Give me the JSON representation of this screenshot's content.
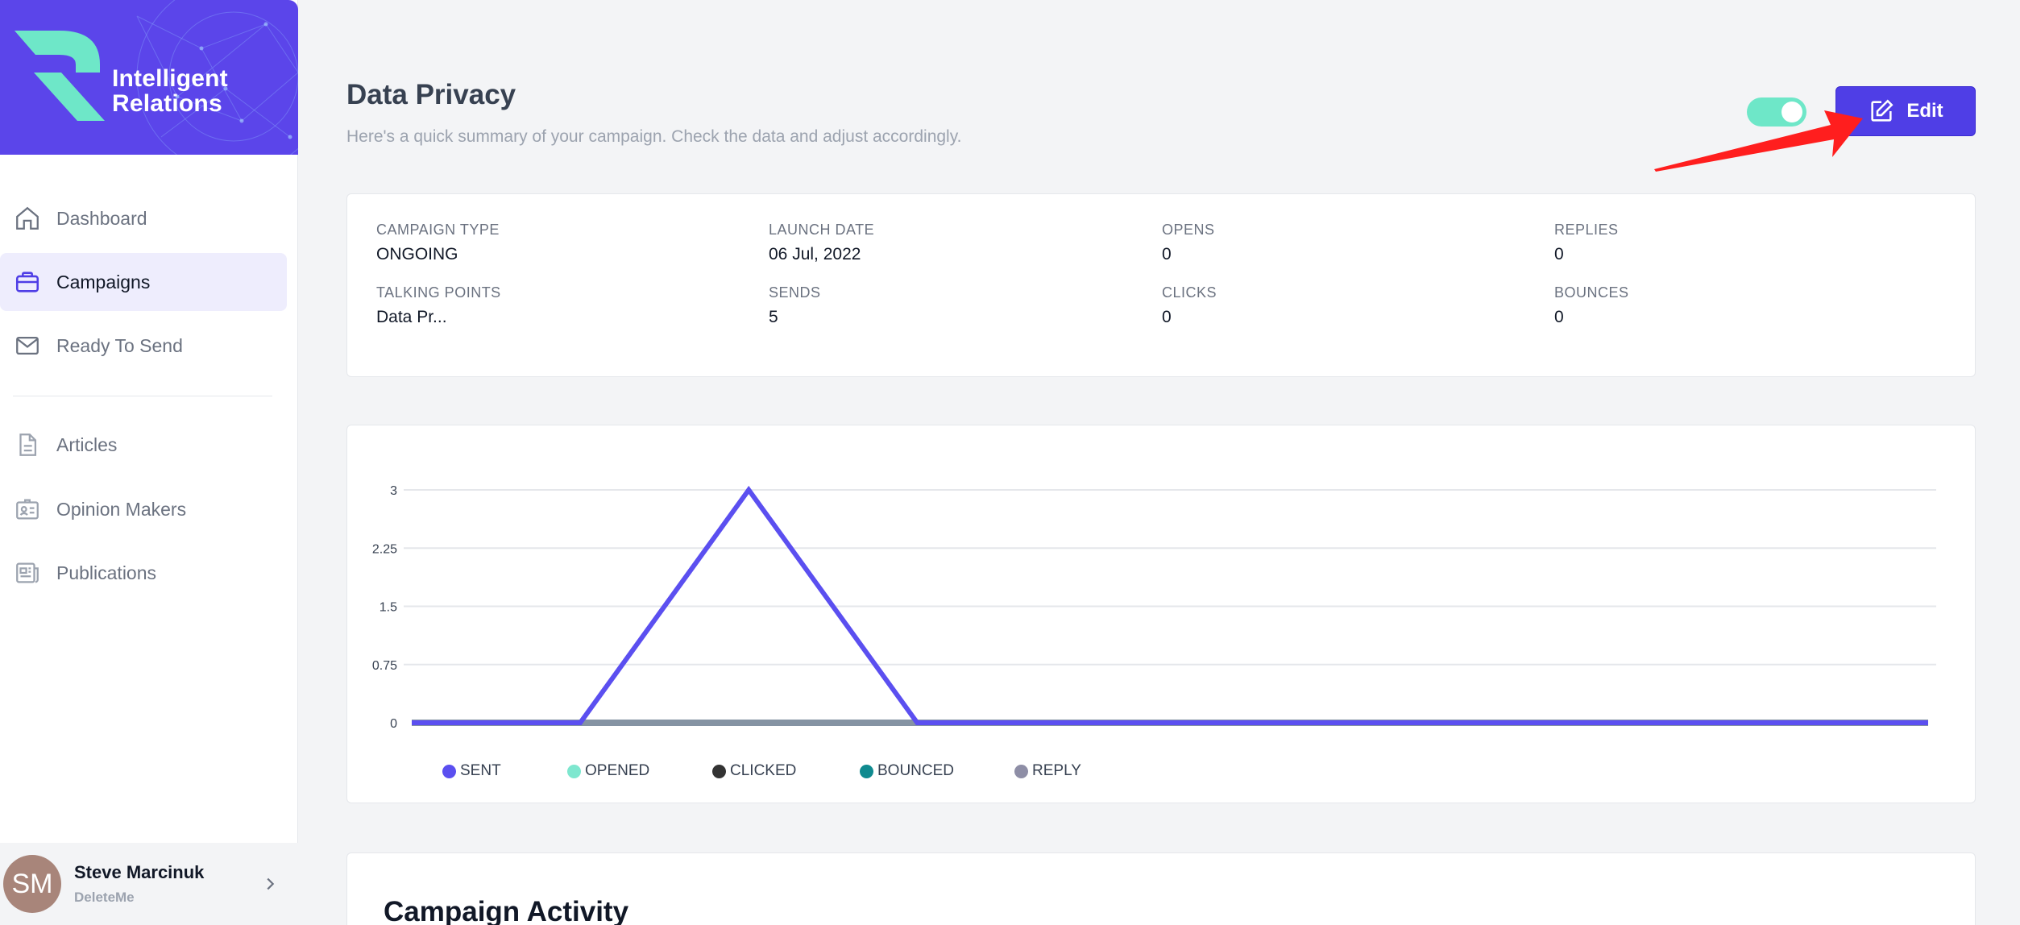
{
  "brand": {
    "name_line1": "Intelligent",
    "name_line2": "Relations",
    "color": "#5b45ea"
  },
  "nav": {
    "items": [
      {
        "label": "Dashboard",
        "icon": "home-icon",
        "active": false
      },
      {
        "label": "Campaigns",
        "icon": "briefcase-icon",
        "active": true
      },
      {
        "label": "Ready To Send",
        "icon": "mail-icon",
        "active": false
      },
      {
        "label": "Articles",
        "icon": "document-icon",
        "active": false
      },
      {
        "label": "Opinion Makers",
        "icon": "id-card-icon",
        "active": false
      },
      {
        "label": "Publications",
        "icon": "newspaper-icon",
        "active": false
      }
    ]
  },
  "user": {
    "initials": "SM",
    "name": "Steve Marcinuk",
    "org": "DeleteMe"
  },
  "header": {
    "title": "Data Privacy",
    "subtitle": "Here's a quick summary of your campaign. Check the data and adjust accordingly.",
    "toggle_on": true,
    "edit_label": "Edit"
  },
  "summary": {
    "campaign_type": {
      "label": "CAMPAIGN TYPE",
      "value": "ONGOING"
    },
    "launch_date": {
      "label": "LAUNCH DATE",
      "value": "06 Jul, 2022"
    },
    "opens": {
      "label": "OPENS",
      "value": "0"
    },
    "replies": {
      "label": "REPLIES",
      "value": "0"
    },
    "talking_points": {
      "label": "TALKING POINTS",
      "value": "Data Pr..."
    },
    "sends": {
      "label": "SENDS",
      "value": "5"
    },
    "clicks": {
      "label": "CLICKS",
      "value": "0"
    },
    "bounces": {
      "label": "BOUNCES",
      "value": "0"
    }
  },
  "chart_data": {
    "type": "line",
    "x_count": 10,
    "ylim": [
      0,
      3
    ],
    "yticks": [
      "0",
      "0.75",
      "1.5",
      "2.25",
      "3"
    ],
    "grid": true,
    "legend_position": "bottom-left",
    "series": [
      {
        "name": "SENT",
        "color": "#5b4ff0",
        "values": [
          0,
          0,
          3,
          0,
          0,
          0,
          0,
          0,
          0,
          0
        ]
      },
      {
        "name": "OPENED",
        "color": "#7ee7cf",
        "values": [
          0,
          0,
          0,
          0,
          0,
          0,
          0,
          0,
          0,
          0
        ]
      },
      {
        "name": "CLICKED",
        "color": "#333333",
        "values": [
          0,
          0,
          0,
          0,
          0,
          0,
          0,
          0,
          0,
          0
        ]
      },
      {
        "name": "BOUNCED",
        "color": "#0f8a8f",
        "values": [
          0,
          0,
          0,
          0,
          0,
          0,
          0,
          0,
          0,
          0
        ]
      },
      {
        "name": "REPLY",
        "color": "#8e8ea6",
        "values": [
          0,
          0,
          0,
          0,
          0,
          0,
          0,
          0,
          0,
          0
        ]
      }
    ]
  },
  "activity": {
    "title": "Campaign Activity"
  }
}
